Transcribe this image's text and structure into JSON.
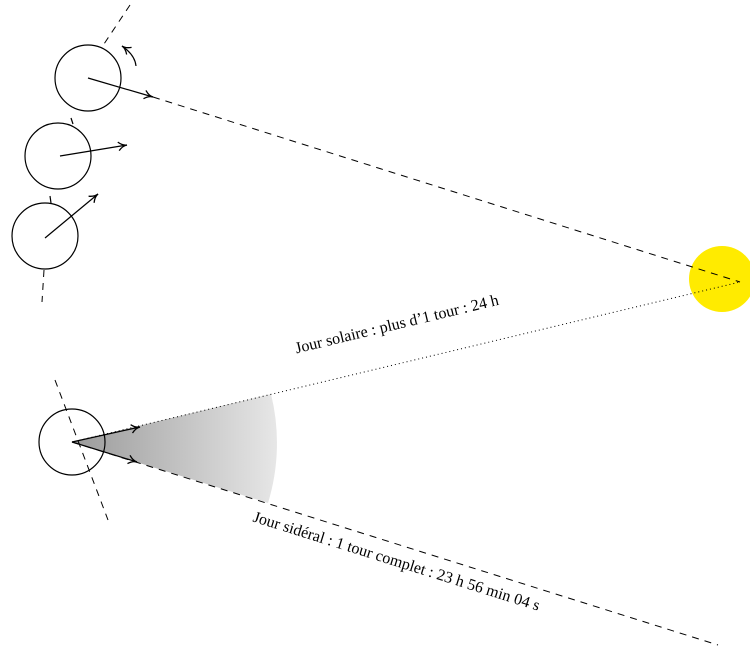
{
  "labels": {
    "solar_day": "Jour solaire : plus d’1 tour : 24 h",
    "sidereal_day": "Jour sidéral : 1 tour complet : 23 h 56 min 04 s"
  }
}
